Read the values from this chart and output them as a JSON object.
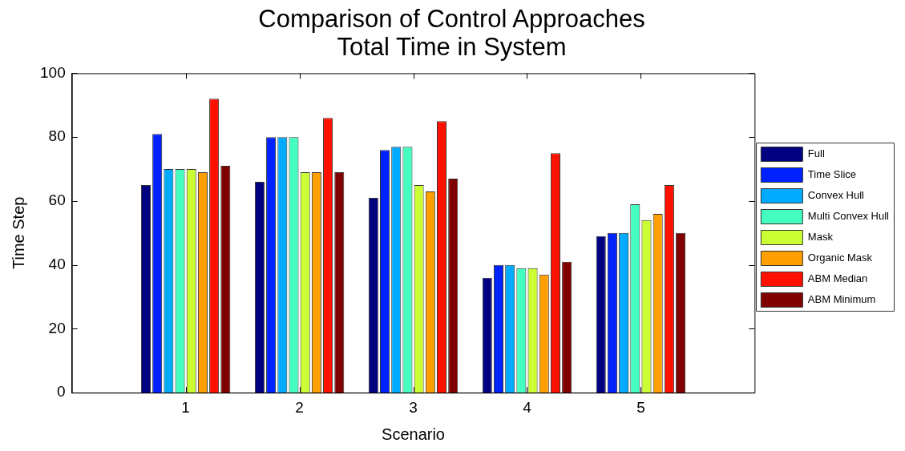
{
  "chart_data": {
    "type": "bar",
    "title": "Comparison of Control Approaches\nTotal Time in System",
    "xlabel": "Scenario",
    "ylabel": "Time Step",
    "categories": [
      "1",
      "2",
      "3",
      "4",
      "5"
    ],
    "series": [
      {
        "name": "Full",
        "color": "#000080",
        "values": [
          65,
          66,
          61,
          36,
          49
        ]
      },
      {
        "name": "Time Slice",
        "color": "#0022ff",
        "values": [
          81,
          80,
          76,
          40,
          50
        ]
      },
      {
        "name": "Convex Hull",
        "color": "#00aaff",
        "values": [
          70,
          80,
          77,
          40,
          50
        ]
      },
      {
        "name": "Multi Convex Hull",
        "color": "#44ffc0",
        "values": [
          70,
          80,
          77,
          39,
          59
        ]
      },
      {
        "name": "Mask",
        "color": "#ccff33",
        "values": [
          70,
          69,
          65,
          39,
          54
        ]
      },
      {
        "name": "Organic Mask",
        "color": "#ff9f00",
        "values": [
          69,
          69,
          63,
          37,
          56
        ]
      },
      {
        "name": "ABM Median",
        "color": "#ff1100",
        "values": [
          92,
          86,
          85,
          75,
          65
        ]
      },
      {
        "name": "ABM Minimum",
        "color": "#800000",
        "values": [
          71,
          69,
          67,
          41,
          50
        ]
      }
    ],
    "ylim": [
      0,
      100
    ],
    "yticks": [
      0,
      20,
      40,
      60,
      80,
      100
    ],
    "grid": false,
    "legend": "right"
  }
}
